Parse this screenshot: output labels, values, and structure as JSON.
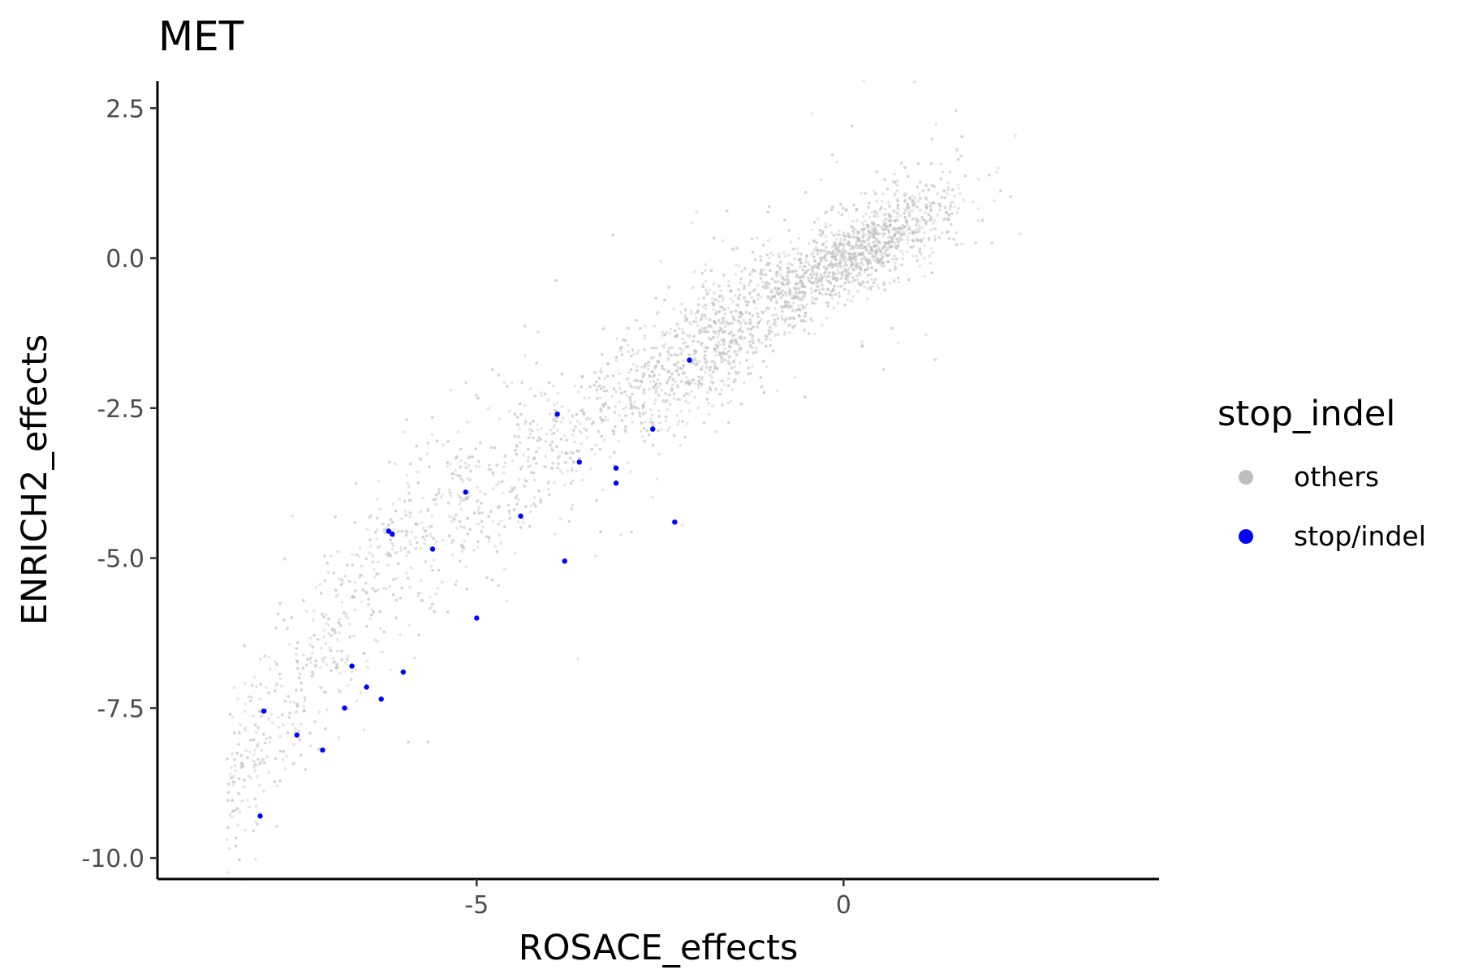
{
  "chart_data": {
    "type": "scatter",
    "title": "MET",
    "xlabel": "ROSACE_effects",
    "ylabel": "ENRICH2_effects",
    "xlim": [
      -9.35,
      4.3
    ],
    "ylim": [
      -10.35,
      2.95
    ],
    "xticks": [
      -5,
      0
    ],
    "xtick_labels": [
      "-5",
      "0"
    ],
    "yticks": [
      2.5,
      0,
      -2.5,
      -5,
      -7.5,
      -10
    ],
    "ytick_labels": [
      "2.5",
      "0.0",
      "-2.5",
      "-5.0",
      "-7.5",
      "-10.0"
    ],
    "grid": false,
    "legend": {
      "title": "stop_indel",
      "position": "right",
      "entries": [
        {
          "label": "others",
          "color": "#bebebe"
        },
        {
          "label": "stop/indel",
          "color": "#0000ff"
        }
      ]
    },
    "series": [
      {
        "name": "others",
        "color": "#bebebe",
        "opacity": 0.4,
        "distribution": "dense cloud of several thousand variants along a rising curve, centred near (0, 0), running from about (-8.5, -9.5) up to about (3, 1.9)",
        "x": [
          -8.6,
          -8.2,
          -7.9,
          -7.7,
          -7.5,
          -7.3,
          -7.1,
          -6.9,
          -6.7,
          -6.5,
          -6.3,
          -6.1,
          -5.9,
          -5.7,
          -5.5,
          -5.2,
          -5.0,
          -4.7,
          -4.5,
          -4.2,
          -4.0,
          -3.7,
          -3.5,
          -3.2,
          -3.0,
          -2.7,
          -2.5,
          -2.2,
          -2.0,
          -1.7,
          -1.5,
          -1.2,
          -1.0,
          -0.7,
          -0.5,
          -0.3,
          0.0,
          0.2,
          0.5,
          0.7,
          1.0,
          1.3,
          1.6,
          2.0,
          2.5,
          3.0,
          3.6
        ],
        "y": [
          -9.2,
          -8.6,
          -8.1,
          -7.6,
          -7.2,
          -6.9,
          -6.5,
          -6.2,
          -5.9,
          -5.6,
          -5.3,
          -5.1,
          -4.8,
          -4.6,
          -4.4,
          -4.1,
          -3.9,
          -3.7,
          -3.5,
          -3.3,
          -3.1,
          -2.9,
          -2.7,
          -2.5,
          -2.3,
          -2.1,
          -1.9,
          -1.7,
          -1.5,
          -1.3,
          -1.1,
          -0.9,
          -0.7,
          -0.5,
          -0.35,
          -0.2,
          0.0,
          0.1,
          0.3,
          0.45,
          0.6,
          0.8,
          1.0,
          1.3,
          1.6,
          1.8,
          1.9
        ]
      },
      {
        "name": "stop/indel",
        "color": "#0000ff",
        "opacity": 1,
        "x": [
          -2.1,
          -2.6,
          -3.9,
          -3.1,
          -3.6,
          -3.1,
          -2.3,
          -5.15,
          -4.4,
          -3.8,
          -6.2,
          -6.15,
          -5.6,
          -5.0,
          -6.7,
          -6.0,
          -6.5,
          -6.3,
          -6.8,
          -7.9,
          -7.45,
          -7.1,
          -7.95
        ],
        "y": [
          -1.7,
          -2.85,
          -2.6,
          -3.5,
          -3.4,
          -3.75,
          -4.4,
          -3.9,
          -4.3,
          -5.05,
          -4.55,
          -4.6,
          -4.85,
          -6.0,
          -6.8,
          -6.9,
          -7.15,
          -7.35,
          -7.5,
          -7.55,
          -7.95,
          -8.2,
          -9.3
        ]
      }
    ]
  }
}
